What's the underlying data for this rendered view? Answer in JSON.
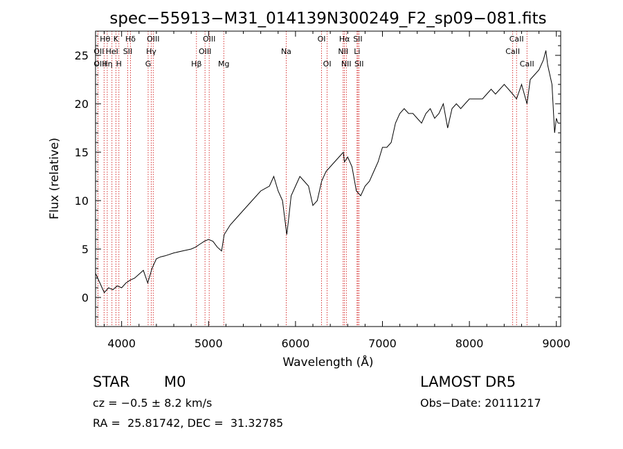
{
  "chart_data": {
    "type": "line",
    "title": "spec−55913−M31_014139N300249_F2_sp09−081.fits",
    "xlabel": "Wavelength (Å)",
    "ylabel": "Flux (relative)",
    "xlim": [
      3700,
      9050
    ],
    "ylim": [
      -3,
      27.5
    ],
    "x_ticks": [
      4000,
      5000,
      6000,
      7000,
      8000,
      9000
    ],
    "y_ticks": [
      0,
      5,
      10,
      15,
      20,
      25
    ],
    "grid": false,
    "line_color": "#000000",
    "marker_color": "#cc0000",
    "spectrum": {
      "x": [
        3700,
        3750,
        3800,
        3850,
        3900,
        3950,
        4000,
        4050,
        4100,
        4150,
        4200,
        4250,
        4300,
        4350,
        4400,
        4450,
        4500,
        4600,
        4700,
        4800,
        4850,
        4900,
        4950,
        5000,
        5050,
        5100,
        5150,
        5180,
        5250,
        5300,
        5400,
        5500,
        5600,
        5700,
        5750,
        5800,
        5850,
        5900,
        5920,
        5950,
        6000,
        6050,
        6100,
        6150,
        6200,
        6250,
        6300,
        6350,
        6400,
        6450,
        6500,
        6550,
        6563,
        6600,
        6650,
        6700,
        6750,
        6800,
        6850,
        6900,
        6950,
        7000,
        7050,
        7100,
        7150,
        7200,
        7250,
        7300,
        7350,
        7400,
        7450,
        7500,
        7550,
        7600,
        7650,
        7700,
        7750,
        7800,
        7850,
        7900,
        7950,
        8000,
        8050,
        8100,
        8150,
        8200,
        8250,
        8300,
        8350,
        8400,
        8450,
        8498,
        8542,
        8600,
        8662,
        8700,
        8750,
        8800,
        8850,
        8880,
        8900,
        8950,
        8980,
        9000,
        9020
      ],
      "y": [
        2.5,
        1.5,
        0.5,
        1.0,
        0.8,
        1.2,
        1.0,
        1.5,
        1.8,
        2.0,
        2.4,
        2.8,
        1.5,
        3.0,
        4.0,
        4.2,
        4.3,
        4.6,
        4.8,
        5.0,
        5.2,
        5.5,
        5.8,
        6.0,
        5.8,
        5.2,
        4.8,
        6.5,
        7.5,
        8.0,
        9.0,
        10.0,
        11.0,
        11.5,
        12.5,
        11.0,
        10.0,
        6.5,
        8.0,
        10.5,
        11.5,
        12.5,
        12.0,
        11.5,
        9.5,
        10.0,
        12.0,
        13.0,
        13.5,
        14.0,
        14.5,
        15.0,
        14.0,
        14.5,
        13.5,
        11.0,
        10.5,
        11.5,
        12.0,
        13.0,
        14.0,
        15.5,
        15.5,
        16.0,
        18.0,
        19.0,
        19.5,
        19.0,
        19.0,
        18.5,
        18.0,
        19.0,
        19.5,
        18.5,
        19.0,
        20.0,
        17.5,
        19.5,
        20.0,
        19.5,
        20.0,
        20.5,
        20.5,
        20.5,
        20.5,
        21.0,
        21.5,
        21.0,
        21.5,
        22.0,
        21.5,
        21.0,
        20.5,
        22.0,
        20.0,
        22.5,
        23.0,
        23.5,
        24.5,
        25.5,
        24.0,
        22.0,
        17.0,
        18.5,
        18.0
      ]
    },
    "line_markers": [
      {
        "label": "Hθ",
        "x": 3798,
        "row": 0,
        "side": "right"
      },
      {
        "label": "OII",
        "x": 3727,
        "row": 1,
        "side": "right"
      },
      {
        "label": "OIII",
        "x": 3727,
        "row": 2,
        "side": "right"
      },
      {
        "label": "Hη",
        "x": 3835,
        "row": 2,
        "side": "center"
      },
      {
        "label": "K",
        "x": 3934,
        "row": 0,
        "side": "center"
      },
      {
        "label": "HeI",
        "x": 3889,
        "row": 1,
        "side": "center"
      },
      {
        "label": "H",
        "x": 3969,
        "row": 2,
        "side": "center"
      },
      {
        "label": "Hδ",
        "x": 4102,
        "row": 0,
        "side": "center"
      },
      {
        "label": "SII",
        "x": 4070,
        "row": 1,
        "side": "center"
      },
      {
        "label": "OIII",
        "x": 4363,
        "row": 0,
        "side": "center"
      },
      {
        "label": "Hγ",
        "x": 4341,
        "row": 1,
        "side": "center"
      },
      {
        "label": "G",
        "x": 4305,
        "row": 2,
        "side": "center"
      },
      {
        "label": "OIII",
        "x": 5007,
        "row": 0,
        "side": "center"
      },
      {
        "label": "OIII",
        "x": 4959,
        "row": 1,
        "side": "center"
      },
      {
        "label": "Hβ",
        "x": 4861,
        "row": 2,
        "side": "center"
      },
      {
        "label": "Mg",
        "x": 5175,
        "row": 2,
        "side": "center"
      },
      {
        "label": "Na",
        "x": 5893,
        "row": 1,
        "side": "center"
      },
      {
        "label": "OI",
        "x": 6300,
        "row": 0,
        "side": "center"
      },
      {
        "label": "OI",
        "x": 6364,
        "row": 2,
        "side": "center"
      },
      {
        "label": "Hα",
        "x": 6563,
        "row": 0,
        "side": "center"
      },
      {
        "label": "NII",
        "x": 6548,
        "row": 1,
        "side": "center"
      },
      {
        "label": "NII",
        "x": 6584,
        "row": 2,
        "side": "center"
      },
      {
        "label": "SII",
        "x": 6717,
        "row": 0,
        "side": "center"
      },
      {
        "label": "Li",
        "x": 6708,
        "row": 1,
        "side": "center"
      },
      {
        "label": "SII",
        "x": 6731,
        "row": 2,
        "side": "center"
      },
      {
        "label": "CaII",
        "x": 8542,
        "row": 0,
        "side": "center"
      },
      {
        "label": "CaII",
        "x": 8498,
        "row": 1,
        "side": "center"
      },
      {
        "label": "CaII",
        "x": 8662,
        "row": 2,
        "side": "center"
      }
    ]
  },
  "info": {
    "class_label": "STAR",
    "subclass": "M0",
    "survey": "LAMOST DR5",
    "cz": "cz = −0.5 ± 8.2 km/s",
    "obs_date": "Obs−Date: 20111217",
    "radec": "RA =  25.81742, DEC =  31.32785"
  }
}
